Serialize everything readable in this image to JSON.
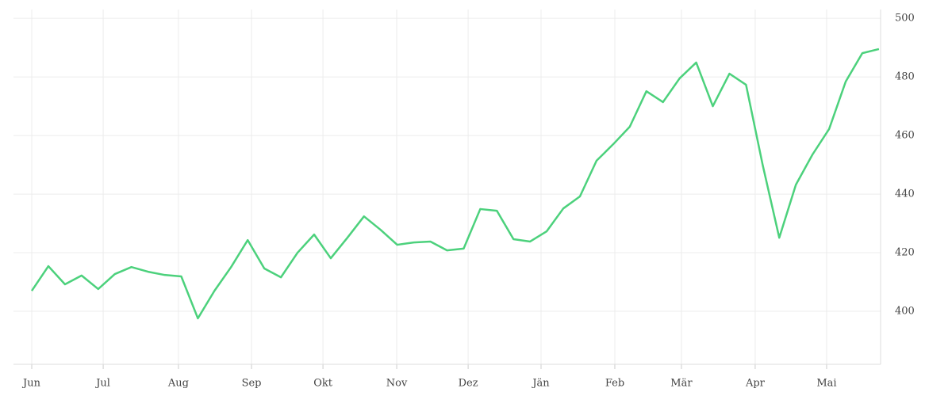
{
  "chart_data": {
    "type": "line",
    "x": [
      0,
      1,
      2,
      3,
      4,
      5,
      6,
      7,
      8,
      9,
      10,
      11,
      12,
      13,
      14,
      15,
      16,
      17,
      18,
      19,
      20,
      21,
      22,
      23,
      24,
      25,
      26,
      27,
      28,
      29,
      30,
      31,
      32,
      33,
      34,
      35,
      36,
      37,
      38,
      39,
      40,
      41,
      42,
      43,
      44,
      45,
      46,
      47,
      48,
      49,
      50,
      51
    ],
    "series": [
      {
        "color": "#4cd17c",
        "values": [
          407.0,
          415.4,
          409.2,
          412.2,
          407.6,
          412.7,
          415.1,
          413.5,
          412.4,
          411.9,
          397.6,
          407.0,
          415.1,
          424.3,
          414.6,
          411.6,
          420.0,
          426.2,
          418.1,
          425.1,
          432.4,
          427.8,
          422.7,
          423.5,
          423.8,
          420.8,
          421.4,
          434.9,
          434.3,
          424.6,
          423.8,
          427.3,
          435.1,
          439.2,
          451.4,
          457.0,
          463.0,
          475.1,
          471.4,
          479.5,
          484.9,
          470.0,
          481.1,
          477.3,
          450.0,
          425.1,
          443.2,
          453.5,
          462.2,
          478.4,
          488.1,
          489.5
        ]
      }
    ],
    "xlim": [
      -1.1,
      51.1
    ],
    "xticks": [
      {
        "value": 0,
        "label": "Jun"
      },
      {
        "value": 4.3,
        "label": "Jul"
      },
      {
        "value": 8.83,
        "label": "Aug"
      },
      {
        "value": 13.23,
        "label": "Sep"
      },
      {
        "value": 17.53,
        "label": "Okt"
      },
      {
        "value": 21.97,
        "label": "Nov"
      },
      {
        "value": 26.27,
        "label": "Dez"
      },
      {
        "value": 30.66,
        "label": "Jän"
      },
      {
        "value": 35.1,
        "label": "Feb"
      },
      {
        "value": 39.11,
        "label": "Mär"
      },
      {
        "value": 43.55,
        "label": "Apr"
      },
      {
        "value": 47.85,
        "label": "Mai"
      }
    ],
    "ylim": [
      381.9,
      503
    ],
    "yticks": [
      400,
      420,
      440,
      460,
      480,
      500
    ],
    "grid": true
  }
}
